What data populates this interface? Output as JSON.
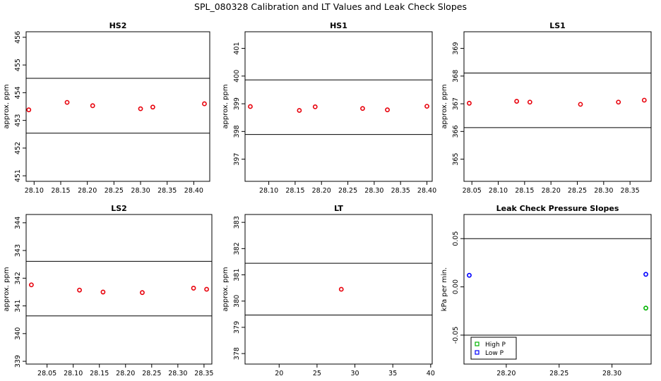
{
  "page": {
    "title": "SPL_080328  Calibration and LT Values and Leak Check Slopes"
  },
  "colors": {
    "points": "#e8000b",
    "high_p": "#00b400",
    "low_p": "#0000ff",
    "lines": "#000000"
  },
  "chart_data": [
    {
      "type": "scatter",
      "title": "HS2",
      "ylabel": "approx. ppm",
      "xlim": [
        28.085,
        28.43
      ],
      "ylim": [
        450.8,
        456.2
      ],
      "xticks": [
        "28.10",
        "28.15",
        "28.20",
        "28.25",
        "28.30",
        "28.35",
        "28.40"
      ],
      "yticks": [
        "451",
        "452",
        "453",
        "454",
        "455",
        "456"
      ],
      "hlines": [
        452.54,
        454.52
      ],
      "series": [
        {
          "x": [
            28.09,
            28.162,
            28.21,
            28.3,
            28.323,
            28.42
          ],
          "y": [
            453.38,
            453.65,
            453.53,
            453.42,
            453.48,
            453.6
          ]
        }
      ]
    },
    {
      "type": "scatter",
      "title": "HS1",
      "ylabel": "approx. ppm",
      "xlim": [
        28.055,
        28.41
      ],
      "ylim": [
        396.2,
        401.6
      ],
      "xticks": [
        "28.10",
        "28.15",
        "28.20",
        "28.25",
        "28.30",
        "28.35",
        "28.40"
      ],
      "yticks": [
        "397",
        "398",
        "399",
        "400",
        "401"
      ],
      "hlines": [
        397.89,
        399.86
      ],
      "series": [
        {
          "x": [
            28.065,
            28.158,
            28.188,
            28.278,
            28.325,
            28.4
          ],
          "y": [
            398.9,
            398.76,
            398.89,
            398.83,
            398.78,
            398.91
          ]
        }
      ]
    },
    {
      "type": "scatter",
      "title": "LS1",
      "ylabel": "approx. ppm",
      "xlim": [
        28.035,
        28.39
      ],
      "ylim": [
        364.2,
        369.6
      ],
      "xticks": [
        "28.05",
        "28.10",
        "28.15",
        "28.20",
        "28.25",
        "28.30",
        "28.35"
      ],
      "yticks": [
        "365",
        "366",
        "367",
        "368",
        "369"
      ],
      "hlines": [
        366.14,
        368.11
      ],
      "series": [
        {
          "x": [
            28.045,
            28.135,
            28.16,
            28.256,
            28.328,
            28.377
          ],
          "y": [
            367.02,
            367.09,
            367.06,
            366.98,
            367.06,
            367.13
          ]
        }
      ]
    },
    {
      "type": "scatter",
      "title": "LS2",
      "ylabel": "approx. ppm",
      "xlim": [
        28.01,
        28.365
      ],
      "ylim": [
        338.9,
        344.3
      ],
      "xticks": [
        "28.05",
        "28.10",
        "28.15",
        "28.20",
        "28.25",
        "28.30",
        "28.35"
      ],
      "yticks": [
        "339",
        "340",
        "341",
        "342",
        "343",
        "344"
      ],
      "hlines": [
        340.64,
        342.61
      ],
      "series": [
        {
          "x": [
            28.02,
            28.112,
            28.157,
            28.232,
            28.33,
            28.355
          ],
          "y": [
            341.76,
            341.57,
            341.5,
            341.48,
            341.64,
            341.6
          ]
        }
      ]
    },
    {
      "type": "scatter",
      "title": "LT",
      "ylabel": "approx. ppm",
      "xlim": [
        15.5,
        40.2
      ],
      "ylim": [
        377.6,
        383.3
      ],
      "xticks": [
        "20",
        "25",
        "30",
        "35",
        "40"
      ],
      "yticks": [
        "378",
        "379",
        "380",
        "381",
        "382",
        "383"
      ],
      "hlines": [
        379.47,
        381.44
      ],
      "series": [
        {
          "x": [
            28.2
          ],
          "y": [
            380.45
          ]
        }
      ]
    },
    {
      "type": "scatter",
      "title": "Leak Check Pressure Slopes",
      "ylabel": "kPa per min.",
      "xlim": [
        28.16,
        28.337
      ],
      "ylim": [
        -0.08,
        0.075
      ],
      "xticks": [
        "28.20",
        "28.25",
        "28.30"
      ],
      "yticks": [
        "-0.05",
        "0.00",
        "0.05"
      ],
      "hlines": [
        -0.05,
        0.05
      ],
      "legend": "bottom-left",
      "series": [
        {
          "name": "High P",
          "x": [
            28.332
          ],
          "y": [
            -0.022
          ]
        },
        {
          "name": "Low P",
          "x": [
            28.165,
            28.332
          ],
          "y": [
            0.012,
            0.013
          ]
        }
      ]
    }
  ]
}
